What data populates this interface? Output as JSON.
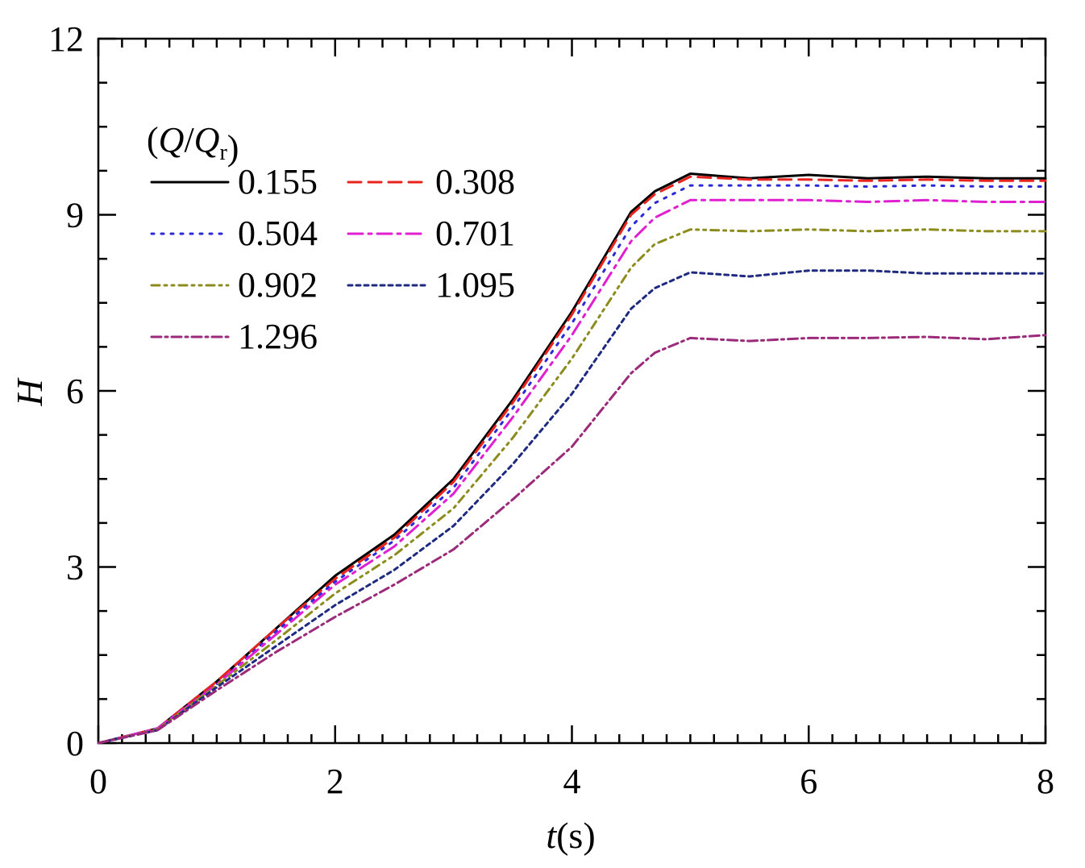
{
  "chart_data": {
    "type": "line",
    "title": "",
    "xlabel": "t(s)",
    "xlabel_parts": {
      "var": "t",
      "unit": "(s)"
    },
    "ylabel": "H",
    "xlim": [
      0,
      8
    ],
    "ylim": [
      0,
      12
    ],
    "xticks": [
      0,
      2,
      4,
      6,
      8
    ],
    "yticks": [
      0,
      3,
      6,
      9,
      12
    ],
    "xtick_labels": [
      "0",
      "2",
      "4",
      "6",
      "8"
    ],
    "ytick_labels": [
      "0",
      "3",
      "6",
      "9",
      "12"
    ],
    "legend_title": "(Q/Qr)",
    "legend_title_parts": {
      "open": "(",
      "q": "Q",
      "slash": "/",
      "q2": "Q",
      "sub": "r",
      "close": ")"
    },
    "legend_position": "top-left",
    "grid": false,
    "x": [
      0,
      0.5,
      1.0,
      1.5,
      2.0,
      2.5,
      3.0,
      3.5,
      4.0,
      4.5,
      4.7,
      5.0,
      5.5,
      6.0,
      6.5,
      7.0,
      7.5,
      8.0
    ],
    "series": [
      {
        "name": "0.155",
        "color": "#000000",
        "dash": "solid",
        "values": [
          0,
          0.25,
          1.05,
          1.95,
          2.85,
          3.55,
          4.5,
          5.85,
          7.35,
          9.05,
          9.4,
          9.7,
          9.62,
          9.68,
          9.62,
          9.65,
          9.62,
          9.62
        ]
      },
      {
        "name": "0.308",
        "color": "#e8231e",
        "dash": "dash",
        "values": [
          0,
          0.25,
          1.05,
          1.95,
          2.8,
          3.5,
          4.45,
          5.8,
          7.3,
          9.0,
          9.35,
          9.65,
          9.6,
          9.6,
          9.58,
          9.6,
          9.58,
          9.58
        ]
      },
      {
        "name": "0.504",
        "color": "#2a2ad8",
        "dash": "dot",
        "values": [
          0,
          0.25,
          1.0,
          1.9,
          2.75,
          3.45,
          4.35,
          5.7,
          7.15,
          8.8,
          9.2,
          9.5,
          9.5,
          9.5,
          9.48,
          9.5,
          9.48,
          9.48
        ]
      },
      {
        "name": "0.701",
        "color": "#e01fd0",
        "dash": "dashdot",
        "values": [
          0,
          0.25,
          1.0,
          1.85,
          2.7,
          3.35,
          4.25,
          5.55,
          6.95,
          8.55,
          8.95,
          9.25,
          9.25,
          9.25,
          9.22,
          9.25,
          9.22,
          9.22
        ]
      },
      {
        "name": "0.902",
        "color": "#8c8c1e",
        "dash": "dashdotdot",
        "values": [
          0,
          0.23,
          0.98,
          1.75,
          2.55,
          3.2,
          4.0,
          5.2,
          6.55,
          8.1,
          8.5,
          8.75,
          8.72,
          8.75,
          8.72,
          8.75,
          8.72,
          8.72
        ]
      },
      {
        "name": "1.095",
        "color": "#1e2a80",
        "dash": "shortdash",
        "values": [
          0,
          0.22,
          0.95,
          1.65,
          2.35,
          2.95,
          3.7,
          4.75,
          5.95,
          7.4,
          7.75,
          8.02,
          7.95,
          8.05,
          8.05,
          8.0,
          8.0,
          8.0
        ]
      },
      {
        "name": "1.296",
        "color": "#9b2a7a",
        "dash": "dashdot2",
        "values": [
          0,
          0.22,
          0.9,
          1.55,
          2.15,
          2.7,
          3.3,
          4.15,
          5.05,
          6.3,
          6.65,
          6.9,
          6.85,
          6.9,
          6.9,
          6.92,
          6.88,
          6.95
        ]
      }
    ]
  }
}
